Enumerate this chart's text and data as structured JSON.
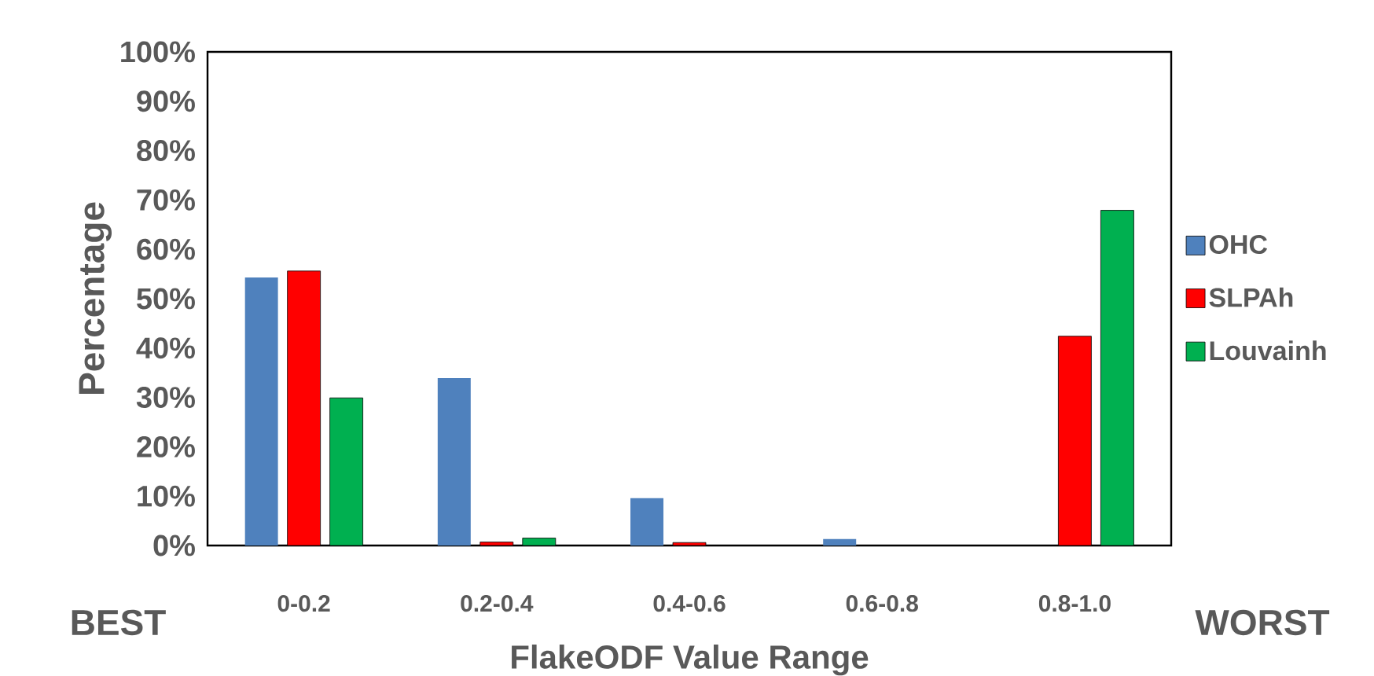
{
  "chart_data": {
    "type": "bar",
    "xlabel": "FlakeODF Value Range",
    "ylabel": "Percentage",
    "categories": [
      "0-0.2",
      "0.2-0.4",
      "0.4-0.6",
      "0.6-0.8",
      "0.8-1.0"
    ],
    "series": [
      {
        "name": "OHC",
        "color": "#4f81bd",
        "values": [
          54.3,
          33.9,
          9.6,
          1.3,
          0
        ]
      },
      {
        "name": "SLPAh",
        "color": "#ff0000",
        "values": [
          55.6,
          0.7,
          0.6,
          null,
          42.4
        ]
      },
      {
        "name": "Louvainh",
        "color": "#00b050",
        "values": [
          29.9,
          1.5,
          null,
          null,
          67.9
        ]
      }
    ],
    "ylim": [
      0,
      100
    ],
    "yticks": [
      {
        "value": 0,
        "label": "0%"
      },
      {
        "value": 10,
        "label": "10%"
      },
      {
        "value": 20,
        "label": "20%"
      },
      {
        "value": 30,
        "label": "30%"
      },
      {
        "value": 40,
        "label": "40%"
      },
      {
        "value": 50,
        "label": "50%"
      },
      {
        "value": 60,
        "label": "60%"
      },
      {
        "value": 70,
        "label": "70%"
      },
      {
        "value": 80,
        "label": "80%"
      },
      {
        "value": 90,
        "label": "90%"
      },
      {
        "value": 100,
        "label": "100%"
      }
    ],
    "legend": "right",
    "grid": false,
    "annotations": [
      "BEST",
      "WORST"
    ]
  }
}
